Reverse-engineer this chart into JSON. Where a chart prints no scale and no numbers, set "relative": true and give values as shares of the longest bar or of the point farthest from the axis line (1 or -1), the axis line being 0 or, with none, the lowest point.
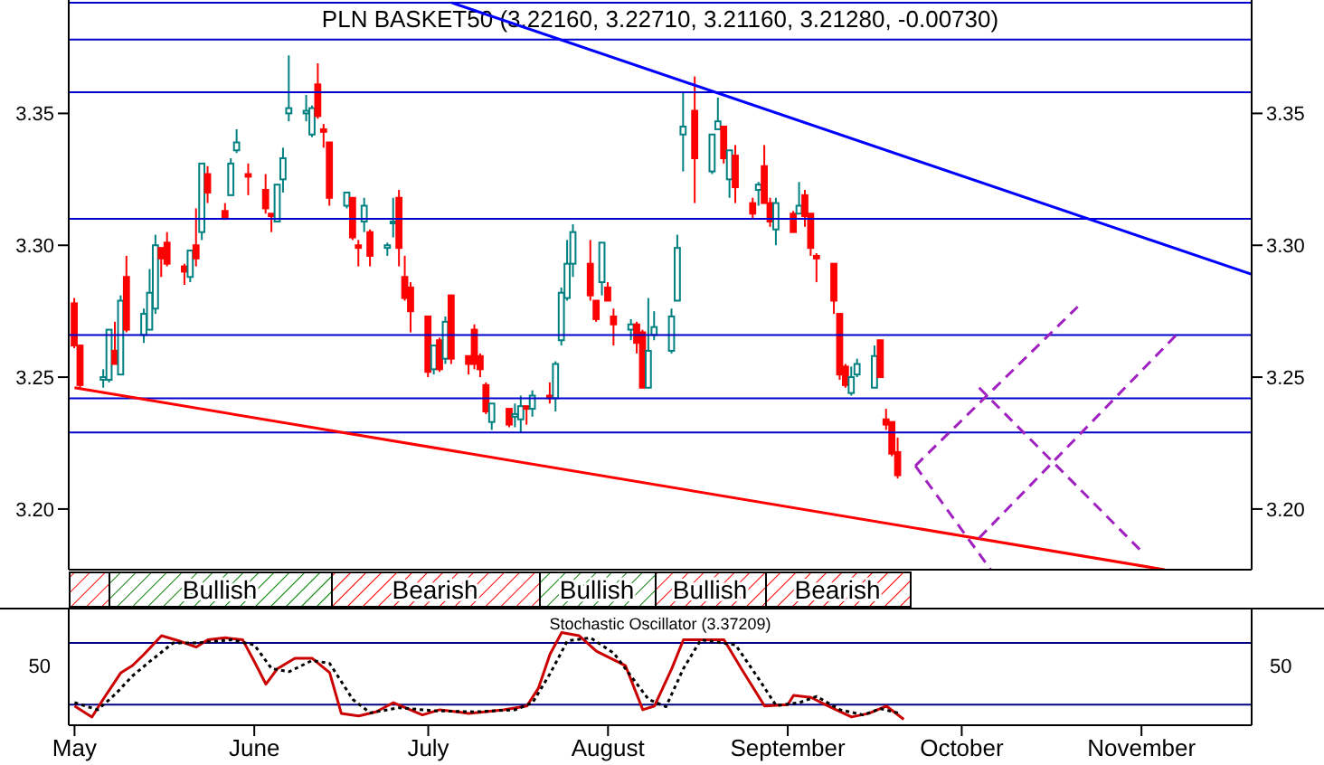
{
  "chart_data": [
    {
      "type": "candlestick",
      "title": "PLN BASKET50 (3.22160, 3.22710, 3.21160, 3.21280, -0.00730)",
      "x": [
        "--05-01",
        "--05-02",
        "--05-06",
        "--05-07",
        "--05-08",
        "--05-09",
        "--05-10",
        "--05-13",
        "--05-14",
        "--05-15",
        "--05-16",
        "--05-17",
        "--05-20",
        "--05-21",
        "--05-22",
        "--05-23",
        "--05-24",
        "--05-27",
        "--05-28",
        "--05-29",
        "--05-31",
        "--06-03",
        "--06-04",
        "--06-05",
        "--06-06",
        "--06-07",
        "--06-10",
        "--06-11",
        "--06-12",
        "--06-13",
        "--06-14",
        "--06-17",
        "--06-18",
        "--06-19",
        "--06-20",
        "--06-21",
        "--06-24",
        "--06-25",
        "--06-26",
        "--06-27",
        "--06-28",
        "--07-01",
        "--07-02",
        "--07-03",
        "--07-04",
        "--07-05",
        "--07-08",
        "--07-09",
        "--07-10",
        "--07-11",
        "--07-12",
        "--07-15",
        "--07-16",
        "--07-17",
        "--07-18",
        "--07-19",
        "--07-22",
        "--07-23",
        "--07-24",
        "--07-25",
        "--07-26",
        "--07-29",
        "--07-30",
        "--07-31",
        "--08-01",
        "--08-02",
        "--08-05",
        "--08-06",
        "--08-07",
        "--08-08",
        "--08-09",
        "--08-12",
        "--08-13",
        "--08-14",
        "--08-16",
        "--08-19",
        "--08-20",
        "--08-21",
        "--08-22",
        "--08-23",
        "--08-26",
        "--08-27",
        "--08-28",
        "--08-29",
        "--08-30",
        "--09-02",
        "--09-03",
        "--09-04",
        "--09-05",
        "--09-06",
        "--09-09",
        "--09-10",
        "--09-11",
        "--09-12",
        "--09-13",
        "--09-16",
        "--09-17",
        "--09-18",
        "--09-19",
        "--09-20"
      ],
      "ohlc": [
        [
          3.278,
          3.28,
          3.261,
          3.262
        ],
        [
          3.262,
          3.262,
          3.246,
          3.247
        ],
        [
          3.249,
          3.253,
          3.246,
          3.25
        ],
        [
          3.249,
          3.268,
          3.248,
          3.268
        ],
        [
          3.26,
          3.271,
          3.255,
          3.255
        ],
        [
          3.251,
          3.281,
          3.251,
          3.279
        ],
        [
          3.288,
          3.296,
          3.267,
          3.268
        ],
        [
          3.266,
          3.276,
          3.263,
          3.274
        ],
        [
          3.268,
          3.291,
          3.268,
          3.282
        ],
        [
          3.276,
          3.304,
          3.274,
          3.3
        ],
        [
          3.299,
          3.299,
          3.288,
          3.295
        ],
        [
          3.301,
          3.305,
          3.292,
          3.293
        ],
        [
          3.292,
          3.293,
          3.285,
          3.29
        ],
        [
          3.288,
          3.298,
          3.286,
          3.298
        ],
        [
          3.3,
          3.314,
          3.292,
          3.295
        ],
        [
          3.305,
          3.331,
          3.302,
          3.331
        ],
        [
          3.327,
          3.33,
          3.316,
          3.32
        ],
        [
          3.313,
          3.316,
          3.31,
          3.31
        ],
        [
          3.319,
          3.333,
          3.319,
          3.331
        ],
        [
          3.336,
          3.344,
          3.335,
          3.339
        ],
        [
          3.327,
          3.331,
          3.319,
          3.326
        ],
        [
          3.321,
          3.327,
          3.312,
          3.314
        ],
        [
          3.312,
          3.312,
          3.305,
          3.311
        ],
        [
          3.309,
          3.323,
          3.309,
          3.323
        ],
        [
          3.325,
          3.337,
          3.32,
          3.333
        ],
        [
          3.35,
          3.372,
          3.347,
          3.352
        ],
        [
          3.35,
          3.357,
          3.347,
          3.351
        ],
        [
          3.342,
          3.353,
          3.341,
          3.352
        ],
        [
          3.361,
          3.369,
          3.348,
          3.349
        ],
        [
          3.344,
          3.346,
          3.337,
          3.343
        ],
        [
          3.339,
          3.339,
          3.315,
          3.318
        ],
        [
          3.315,
          3.32,
          3.314,
          3.32
        ],
        [
          3.318,
          3.318,
          3.302,
          3.303
        ],
        [
          3.3,
          3.302,
          3.292,
          3.299
        ],
        [
          3.309,
          3.318,
          3.305,
          3.315
        ],
        [
          3.305,
          3.306,
          3.292,
          3.296
        ],
        [
          3.299,
          3.301,
          3.296,
          3.3
        ],
        [
          3.309,
          3.318,
          3.303,
          3.309
        ],
        [
          3.318,
          3.321,
          3.292,
          3.299
        ],
        [
          3.288,
          3.296,
          3.279,
          3.28
        ],
        [
          3.284,
          3.286,
          3.267,
          3.275
        ],
        [
          3.273,
          3.273,
          3.25,
          3.252
        ],
        [
          3.253,
          3.262,
          3.251,
          3.262
        ],
        [
          3.264,
          3.265,
          3.252,
          3.253
        ],
        [
          3.257,
          3.273,
          3.255,
          3.271
        ],
        [
          3.281,
          3.281,
          3.255,
          3.257
        ],
        [
          3.258,
          3.258,
          3.251,
          3.255
        ],
        [
          3.268,
          3.27,
          3.253,
          3.255
        ],
        [
          3.258,
          3.259,
          3.25,
          3.253
        ],
        [
          3.247,
          3.248,
          3.236,
          3.237
        ],
        [
          3.233,
          3.24,
          3.23,
          3.24
        ],
        [
          3.238,
          3.238,
          3.231,
          3.232
        ],
        [
          3.235,
          3.24,
          3.231,
          3.236
        ],
        [
          3.234,
          3.243,
          3.229,
          3.239
        ],
        [
          3.239,
          3.239,
          3.232,
          3.238
        ],
        [
          3.238,
          3.245,
          3.235,
          3.243
        ],
        [
          3.243,
          3.248,
          3.24,
          3.242
        ],
        [
          3.242,
          3.256,
          3.237,
          3.255
        ],
        [
          3.264,
          3.284,
          3.262,
          3.282
        ],
        [
          3.28,
          3.302,
          3.279,
          3.293
        ],
        [
          3.293,
          3.308,
          3.288,
          3.305
        ],
        [
          3.293,
          3.302,
          3.279,
          3.281
        ],
        [
          3.279,
          3.279,
          3.271,
          3.272
        ],
        [
          3.286,
          3.301,
          3.281,
          3.301
        ],
        [
          3.284,
          3.286,
          3.279,
          3.279
        ],
        [
          3.273,
          3.276,
          3.262,
          3.27
        ],
        [
          3.268,
          3.272,
          3.264,
          3.27
        ],
        [
          3.27,
          3.271,
          3.259,
          3.263
        ],
        [
          3.267,
          3.268,
          3.246,
          3.246
        ],
        [
          3.246,
          3.28,
          3.246,
          3.26
        ],
        [
          3.266,
          3.275,
          3.264,
          3.269
        ],
        [
          3.26,
          3.276,
          3.259,
          3.273
        ],
        [
          3.279,
          3.304,
          3.279,
          3.299
        ],
        [
          3.342,
          3.358,
          3.328,
          3.345
        ],
        [
          3.351,
          3.364,
          3.316,
          3.333
        ],
        [
          3.328,
          3.342,
          3.327,
          3.342
        ],
        [
          3.344,
          3.356,
          3.344,
          3.347
        ],
        [
          3.345,
          3.345,
          3.331,
          3.333
        ],
        [
          3.325,
          3.336,
          3.318,
          3.336
        ],
        [
          3.334,
          3.338,
          3.316,
          3.322
        ],
        [
          3.316,
          3.318,
          3.31,
          3.312
        ],
        [
          3.321,
          3.324,
          3.315,
          3.323
        ],
        [
          3.33,
          3.338,
          3.316,
          3.316
        ],
        [
          3.316,
          3.318,
          3.307,
          3.309
        ],
        [
          3.306,
          3.318,
          3.3,
          3.316
        ],
        [
          3.312,
          3.313,
          3.305,
          3.305
        ],
        [
          3.312,
          3.324,
          3.312,
          3.315
        ],
        [
          3.319,
          3.321,
          3.307,
          3.311
        ],
        [
          3.312,
          3.312,
          3.296,
          3.299
        ],
        [
          3.296,
          3.297,
          3.286,
          3.295
        ],
        [
          3.293,
          3.293,
          3.274,
          3.279
        ],
        [
          3.274,
          3.274,
          3.249,
          3.251
        ],
        [
          3.254,
          3.255,
          3.246,
          3.247
        ],
        [
          3.244,
          3.254,
          3.243,
          3.25
        ],
        [
          3.251,
          3.257,
          3.25,
          3.255
        ],
        [
          3.246,
          3.262,
          3.246,
          3.258
        ],
        [
          3.264,
          3.264,
          3.25,
          3.25
        ],
        [
          3.234,
          3.238,
          3.23,
          3.232
        ],
        [
          3.233,
          3.233,
          3.22,
          3.221
        ],
        [
          3.2216,
          3.2271,
          3.2116,
          3.2128
        ]
      ],
      "series": [
        {
          "type": "line",
          "color": "#0000ff",
          "x": [
            "--07-05",
            "--11-20"
          ],
          "values": [
            3.392,
            3.289
          ]
        },
        {
          "type": "line",
          "color": "#ff0000",
          "x": [
            "--05-01",
            "--11-05"
          ],
          "values": [
            3.246,
            3.177
          ]
        },
        {
          "type": "line",
          "color": "#a020c0",
          "line_style": "dashed",
          "x": [
            "--09-23",
            "--10-21"
          ],
          "values": [
            3.2164,
            3.2767
          ]
        },
        {
          "type": "line",
          "color": "#a020c0",
          "line_style": "dashed",
          "x": [
            "--10-04",
            "--11-07"
          ],
          "values": [
            3.189,
            3.266
          ]
        },
        {
          "type": "line",
          "color": "#a020c0",
          "line_style": "dashed",
          "x": [
            "--09-23",
            "--10-06"
          ],
          "values": [
            3.2164,
            3.177
          ]
        },
        {
          "type": "line",
          "color": "#a020c0",
          "line_style": "dashed",
          "x": [
            "--10-04",
            "--11-01"
          ],
          "values": [
            3.246,
            3.184
          ]
        }
      ],
      "xlim": [
        "--04-30",
        "--11-20"
      ],
      "ylim": [
        3.177,
        3.393
      ],
      "yticks": [
        {
          "value": 3.2,
          "label": "3.20"
        },
        3.25,
        {
          "value": 3.3,
          "label": "3.30"
        },
        3.35
      ],
      "y2lim": [
        3.177,
        3.393
      ],
      "y2ticks": [
        {
          "value": 3.2,
          "label": "3.20"
        },
        3.25,
        {
          "value": 3.3,
          "label": "3.30"
        },
        3.35
      ],
      "tick_labels": "y",
      "ref_lines": [
        {
          "axis": "y",
          "value": 3.392,
          "color": "#0000cc"
        },
        {
          "axis": "y",
          "value": 3.378,
          "color": "#0000cc"
        },
        {
          "axis": "y",
          "value": 3.358,
          "color": "#0000cc"
        },
        {
          "axis": "y",
          "value": 3.31,
          "color": "#0000cc"
        },
        {
          "axis": "y",
          "value": 3.266,
          "color": "#0000cc"
        },
        {
          "axis": "y",
          "value": 3.242,
          "color": "#0000cc"
        },
        {
          "axis": "y",
          "value": 3.229,
          "color": "#0000cc"
        }
      ],
      "annotations": [
        "Bullish",
        "Bearish",
        "Bullish",
        "Bullish",
        "Bearish"
      ]
    },
    {
      "type": "line",
      "title": "Stochastic Oscillator (3.37209)",
      "relative": true,
      "annotations": [
        "50",
        "50"
      ],
      "series": [
        {
          "color": "#cc0000",
          "x": [
            "--05-01",
            "--05-04",
            "--05-06",
            "--05-09",
            "--05-11",
            "--05-13",
            "--05-16",
            "--05-19",
            "--05-22",
            "--05-24",
            "--05-27",
            "--05-30",
            "--06-01",
            "--06-03",
            "--06-05",
            "--06-08",
            "--06-11",
            "--06-14",
            "--06-16",
            "--06-19",
            "--06-22",
            "--06-25",
            "--06-30",
            "--07-03",
            "--07-08",
            "--07-14",
            "--07-18",
            "--07-20",
            "--07-22",
            "--07-24",
            "--07-27",
            "--07-30",
            "--08-04",
            "--08-07",
            "--08-09",
            "--08-12",
            "--08-14",
            "--08-21",
            "--08-24",
            "--08-28",
            "--09-01",
            "--09-02",
            "--09-05",
            "--09-08",
            "--09-12",
            "--09-15",
            "--09-18",
            "--09-21"
          ],
          "values": [
            0.207,
            0.088,
            0.286,
            0.567,
            0.644,
            0.767,
            0.967,
            0.911,
            0.844,
            0.922,
            0.944,
            0.922,
            0.689,
            0.444,
            0.611,
            0.722,
            0.722,
            0.567,
            0.128,
            0.1,
            0.144,
            0.244,
            0.111,
            0.167,
            0.128,
            0.167,
            0.207,
            0.4,
            0.767,
            1,
            0.967,
            0.8,
            0.644,
            0.167,
            0.207,
            0.611,
            0.922,
            0.922,
            0.611,
            0.207,
            0.222,
            0.322,
            0.3,
            0.207,
            0.089,
            0.128,
            0.207,
            0.063
          ]
        },
        {
          "color": "#000000",
          "line_style": "dotted",
          "x": [
            "--05-01",
            "--05-05",
            "--05-08",
            "--05-11",
            "--05-14",
            "--05-18",
            "--05-22",
            "--05-28",
            "--06-01",
            "--06-04",
            "--06-07",
            "--06-11",
            "--06-14",
            "--06-18",
            "--06-21",
            "--06-26",
            "--07-02",
            "--07-09",
            "--07-16",
            "--07-19",
            "--07-22",
            "--07-25",
            "--07-29",
            "--08-02",
            "--08-08",
            "--08-11",
            "--08-14",
            "--08-17",
            "--08-23",
            "--08-27",
            "--08-30",
            "--09-03",
            "--09-06",
            "--09-10",
            "--09-14",
            "--09-17",
            "--09-20"
          ],
          "values": [
            0.244,
            0.167,
            0.333,
            0.533,
            0.689,
            0.889,
            0.889,
            0.922,
            0.867,
            0.611,
            0.578,
            0.7,
            0.667,
            0.278,
            0.133,
            0.189,
            0.156,
            0.144,
            0.167,
            0.244,
            0.556,
            0.911,
            0.944,
            0.778,
            0.278,
            0.2,
            0.611,
            0.922,
            0.867,
            0.5,
            0.211,
            0.244,
            0.311,
            0.167,
            0.111,
            0.178,
            0.133
          ]
        }
      ],
      "xlim": [
        "--04-30",
        "--11-20"
      ],
      "xticks": [
        {
          "value": "--05-01",
          "label": "May"
        },
        {
          "value": "--06-01",
          "label": "June"
        },
        {
          "value": "--07-01",
          "label": "July"
        },
        {
          "value": "--08-01",
          "label": "August"
        },
        {
          "value": "--09-01",
          "label": "September"
        },
        {
          "value": "--10-01",
          "label": "October"
        },
        {
          "value": "--11-01",
          "label": "November"
        }
      ],
      "ref_lines": [
        {
          "axis": "y",
          "value": 0.889,
          "color": "#000080"
        },
        {
          "axis": "y",
          "value": 0.222,
          "color": "#000080"
        }
      ]
    }
  ]
}
